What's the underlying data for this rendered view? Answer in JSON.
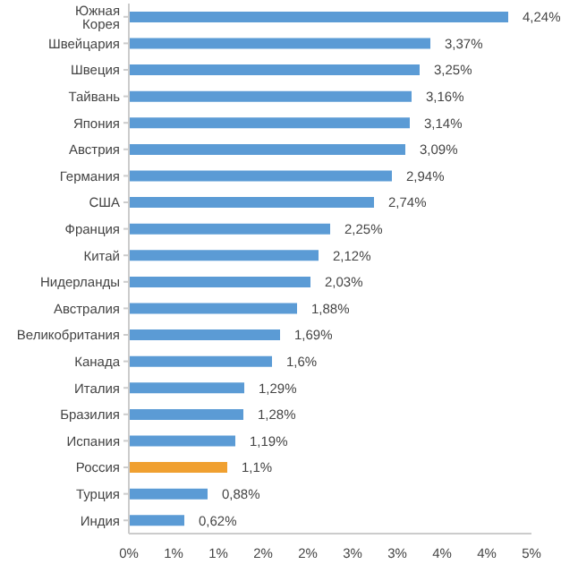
{
  "chart_data": {
    "type": "bar",
    "orientation": "horizontal",
    "categories": [
      "Южная Корея",
      "Швейцария",
      "Швеция",
      "Тайвань",
      "Япония",
      "Австрия",
      "Германия",
      "США",
      "Франция",
      "Китай",
      "Нидерланды",
      "Австралия",
      "Великобритания",
      "Канада",
      "Италия",
      "Бразилия",
      "Испания",
      "Россия",
      "Турция",
      "Индия"
    ],
    "values": [
      4.24,
      3.37,
      3.25,
      3.16,
      3.14,
      3.09,
      2.94,
      2.74,
      2.25,
      2.12,
      2.03,
      1.88,
      1.69,
      1.6,
      1.29,
      1.28,
      1.19,
      1.1,
      0.88,
      0.62
    ],
    "value_labels": [
      "4,24%",
      "3,37%",
      "3,25%",
      "3,16%",
      "3,14%",
      "3,09%",
      "2,94%",
      "2,74%",
      "2,25%",
      "2,12%",
      "2,03%",
      "1,88%",
      "1,69%",
      "1,6%",
      "1,29%",
      "1,28%",
      "1,19%",
      "1,1%",
      "0,88%",
      "0,62%"
    ],
    "colors": [
      "#5b9bd5",
      "#5b9bd5",
      "#5b9bd5",
      "#5b9bd5",
      "#5b9bd5",
      "#5b9bd5",
      "#5b9bd5",
      "#5b9bd5",
      "#5b9bd5",
      "#5b9bd5",
      "#5b9bd5",
      "#5b9bd5",
      "#5b9bd5",
      "#5b9bd5",
      "#5b9bd5",
      "#5b9bd5",
      "#5b9bd5",
      "#f0a030",
      "#5b9bd5",
      "#5b9bd5"
    ],
    "xlim": [
      0,
      4.5
    ],
    "xticks": [
      {
        "value": 0,
        "label": "0%"
      },
      {
        "value": 0.5,
        "label": "1%"
      },
      {
        "value": 1,
        "label": "1%"
      },
      {
        "value": 1.5,
        "label": "2%"
      },
      {
        "value": 2,
        "label": "2%"
      },
      {
        "value": 2.5,
        "label": "3%"
      },
      {
        "value": 3,
        "label": "3%"
      },
      {
        "value": 3.5,
        "label": "4%"
      },
      {
        "value": 4,
        "label": "4%"
      },
      {
        "value": 4.5,
        "label": "5%"
      }
    ],
    "grid": false,
    "legend": false
  }
}
